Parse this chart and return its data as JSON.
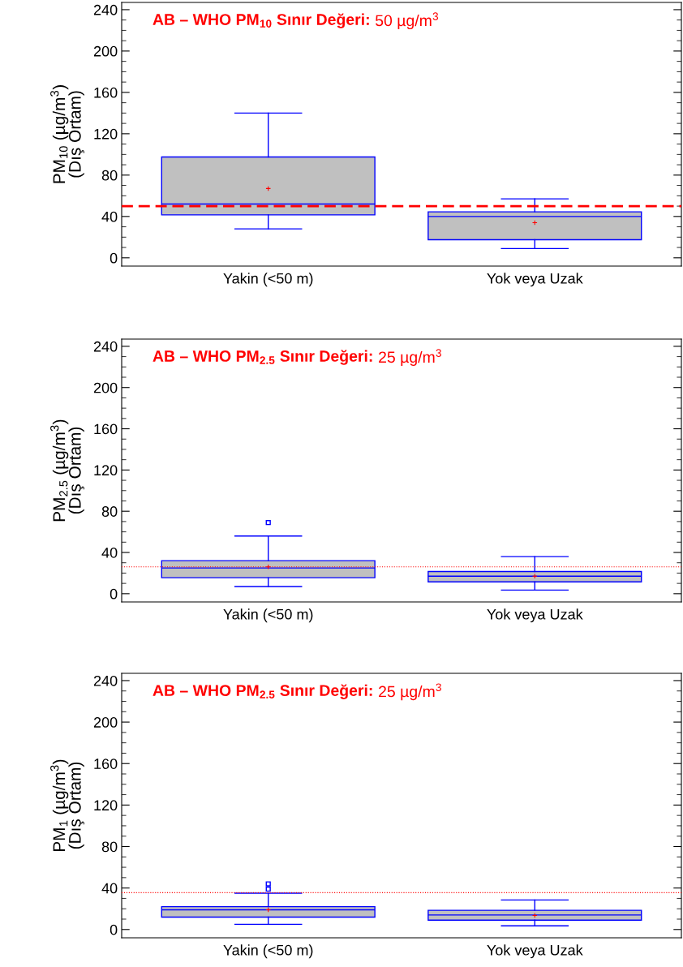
{
  "chart_data": [
    {
      "type": "box",
      "categories": [
        "Yakin (<50 m)",
        "Yok veya Uzak"
      ],
      "ylabel": "PM$_{10}$ (µg/m$^{3}$)\n(Dış Ortam)",
      "ylim": [
        -8,
        247
      ],
      "yticks": [
        0,
        40,
        80,
        120,
        160,
        200,
        240
      ],
      "color": "#c0c0c0",
      "boxes": [
        {
          "low": 28,
          "q1": 41.5,
          "median": 52,
          "q3": 97.5,
          "high": 140,
          "mean": 67
        },
        {
          "low": 9,
          "q1": 17.5,
          "median": 40,
          "q3": 44.5,
          "high": 57,
          "mean": 34
        }
      ],
      "annotations": [
        "AB – WHO PM$_{10}$ Sınır Değeri:",
        "50 µg/m$^{3}$"
      ],
      "ref_lines": [
        {
          "axis": "y",
          "value": 50,
          "color": "#ff0000",
          "line_style": "dashed"
        }
      ]
    },
    {
      "type": "box",
      "categories": [
        "Yakin (<50 m)",
        "Yok veya Uzak"
      ],
      "ylabel": "PM$_{2.5}$ (µg/m$^{3}$)\n(Dış Ortam)",
      "ylim": [
        -8,
        247
      ],
      "yticks": [
        0,
        40,
        80,
        120,
        160,
        200,
        240
      ],
      "color": "#c0c0c0",
      "boxes": [
        {
          "low": 7,
          "q1": 15.5,
          "median": 25,
          "q3": 32,
          "high": 56,
          "mean": 26,
          "outliers": [
            69
          ]
        },
        {
          "low": 3.5,
          "q1": 11.5,
          "median": 17,
          "q3": 21.5,
          "high": 36,
          "mean": 17
        }
      ],
      "annotations": [
        "AB – WHO PM$_{2.5}$ Sınır Değeri:",
        "25 µg/m$^{3}$"
      ],
      "ref_lines": [
        {
          "axis": "y",
          "value": 26,
          "color": "#ff0000",
          "line_style": "dotted"
        }
      ]
    },
    {
      "type": "box",
      "categories": [
        "Yakin (<50 m)",
        "Yok veya Uzak"
      ],
      "ylabel": "PM$_{1}$ (µg/m$^{3}$)\n(Dış Ortam)",
      "ylim": [
        -8,
        247
      ],
      "yticks": [
        0,
        40,
        80,
        120,
        160,
        200,
        240
      ],
      "color": "#c0c0c0",
      "boxes": [
        {
          "low": 5,
          "q1": 12,
          "median": 19,
          "q3": 22,
          "high": 35,
          "mean": 19,
          "outliers": [
            39,
            44
          ]
        },
        {
          "low": 3.5,
          "q1": 9,
          "median": 14,
          "q3": 18.5,
          "high": 28.5,
          "mean": 13.5
        }
      ],
      "annotations": [
        "AB – WHO PM$_{2.5}$ Sınır Değeri:",
        "25 µg/m$^{3}$"
      ],
      "ref_lines": [
        {
          "axis": "y",
          "value": 35.5,
          "color": "#ff0000",
          "line_style": "dotted"
        }
      ]
    }
  ]
}
